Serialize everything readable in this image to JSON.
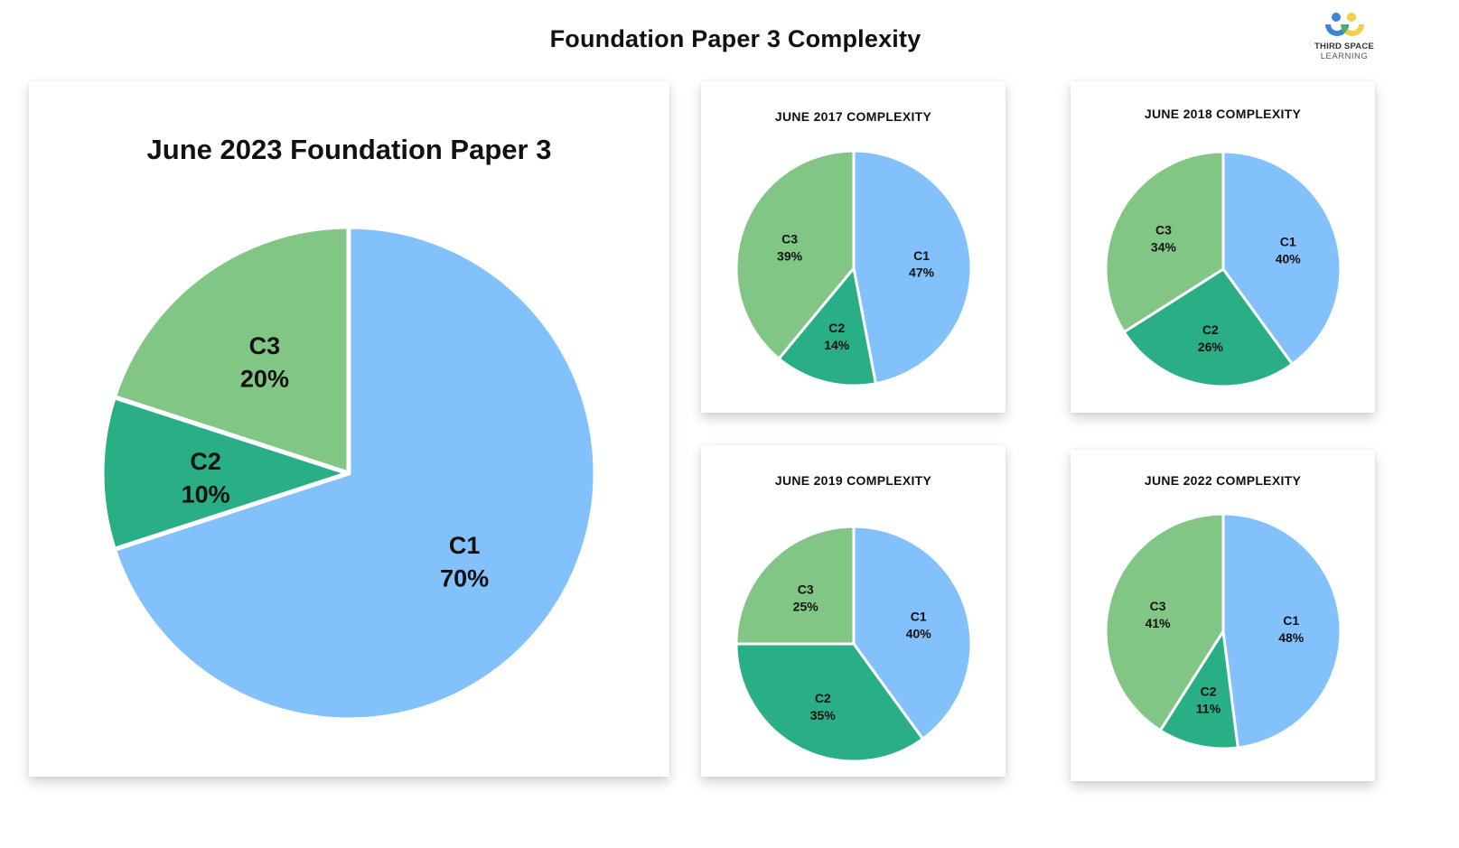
{
  "header": {
    "title": "Foundation Paper 3 Complexity",
    "logo": {
      "line1": "THIRD SPACE",
      "line2": "LEARNING"
    }
  },
  "colors": {
    "C1": "#82c1fc",
    "C2": "#2aae86",
    "C3": "#82c685",
    "separator": "#ffffff"
  },
  "charts": {
    "main": {
      "title": "June 2023 Foundation Paper 3"
    },
    "y2017": {
      "title": "JUNE 2017 COMPLEXITY"
    },
    "y2018": {
      "title": "JUNE 2018 COMPLEXITY"
    },
    "y2019": {
      "title": "JUNE 2019 COMPLEXITY"
    },
    "y2022": {
      "title": "JUNE 2022 COMPLEXITY"
    }
  },
  "chart_data": [
    {
      "type": "pie",
      "title": "June 2023 Foundation Paper 3",
      "categories": [
        "C1",
        "C2",
        "C3"
      ],
      "values": [
        70,
        10,
        20
      ],
      "labels": [
        "C1 70%",
        "C2 10%",
        "C3 20%"
      ],
      "start_angle": "12 o'clock, clockwise"
    },
    {
      "type": "pie",
      "title": "JUNE 2017 COMPLEXITY",
      "categories": [
        "C1",
        "C2",
        "C3"
      ],
      "values": [
        47,
        14,
        39
      ],
      "labels": [
        "C1 47%",
        "C2 14%",
        "C3 39%"
      ]
    },
    {
      "type": "pie",
      "title": "JUNE 2018 COMPLEXITY",
      "categories": [
        "C1",
        "C2",
        "C3"
      ],
      "values": [
        40,
        26,
        34
      ],
      "labels": [
        "C1 40%",
        "C2 26%",
        "C3 34%"
      ]
    },
    {
      "type": "pie",
      "title": "JUNE 2019 COMPLEXITY",
      "categories": [
        "C1",
        "C2",
        "C3"
      ],
      "values": [
        40,
        35,
        25
      ],
      "labels": [
        "C1 40%",
        "C2 35%",
        "C3 25%"
      ]
    },
    {
      "type": "pie",
      "title": "JUNE 2022 COMPLEXITY",
      "categories": [
        "C1",
        "C2",
        "C3"
      ],
      "values": [
        48,
        11,
        41
      ],
      "labels": [
        "C1 48%",
        "C2 11%",
        "C3 41%"
      ]
    }
  ]
}
